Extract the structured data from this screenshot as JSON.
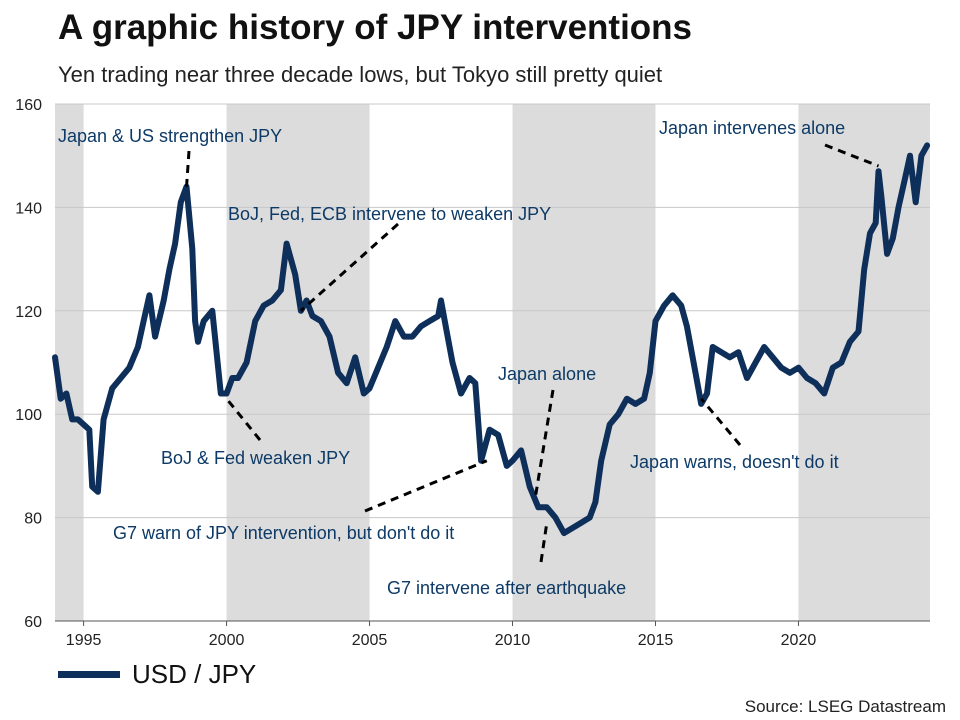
{
  "header": {
    "title": "A graphic history of JPY interventions",
    "subtitle": "Yen trading near three decade lows, but Tokyo still pretty quiet"
  },
  "legend": {
    "label": "USD / JPY"
  },
  "source": "Source: LSEG Datastream",
  "colors": {
    "line": "#0d2f5a",
    "band": "#dcdcdc",
    "annotation": "#0d3a66"
  },
  "chart_data": {
    "type": "line",
    "title": "A graphic history of JPY interventions",
    "subtitle": "Yen trading near three decade lows, but Tokyo still pretty quiet",
    "ylim": [
      60,
      160
    ],
    "xlim": [
      1994.0,
      2024.6
    ],
    "yticks": [
      60,
      80,
      100,
      120,
      140,
      160
    ],
    "xticks": [
      1995,
      2000,
      2005,
      2010,
      2015,
      2020
    ],
    "grid": true,
    "legend_position": "bottom-left",
    "shaded_periods": [
      [
        1994.0,
        1995.0
      ],
      [
        2000.0,
        2005.0
      ],
      [
        2010.0,
        2015.0
      ],
      [
        2020.0,
        2024.6
      ]
    ],
    "series": [
      {
        "name": "USD / JPY",
        "x": [
          1994.0,
          1994.2,
          1994.4,
          1994.6,
          1994.8,
          1995.0,
          1995.2,
          1995.3,
          1995.5,
          1995.7,
          1996.0,
          1996.3,
          1996.6,
          1996.9,
          1997.1,
          1997.3,
          1997.5,
          1997.8,
          1998.0,
          1998.2,
          1998.4,
          1998.6,
          1998.8,
          1998.9,
          1999.0,
          1999.2,
          1999.5,
          1999.8,
          2000.0,
          2000.2,
          2000.4,
          2000.7,
          2001.0,
          2001.3,
          2001.6,
          2001.9,
          2002.1,
          2002.4,
          2002.6,
          2002.8,
          2003.0,
          2003.3,
          2003.6,
          2003.9,
          2004.2,
          2004.5,
          2004.8,
          2005.0,
          2005.3,
          2005.6,
          2005.9,
          2006.2,
          2006.5,
          2006.8,
          2007.1,
          2007.4,
          2007.5,
          2007.7,
          2007.9,
          2008.2,
          2008.5,
          2008.7,
          2008.9,
          2009.2,
          2009.5,
          2009.8,
          2010.0,
          2010.3,
          2010.6,
          2010.9,
          2011.2,
          2011.5,
          2011.8,
          2012.1,
          2012.4,
          2012.7,
          2012.9,
          2013.1,
          2013.4,
          2013.7,
          2014.0,
          2014.3,
          2014.6,
          2014.8,
          2015.0,
          2015.3,
          2015.6,
          2015.9,
          2016.1,
          2016.4,
          2016.6,
          2016.8,
          2017.0,
          2017.3,
          2017.6,
          2017.9,
          2018.2,
          2018.5,
          2018.8,
          2019.1,
          2019.4,
          2019.7,
          2020.0,
          2020.3,
          2020.6,
          2020.9,
          2021.2,
          2021.5,
          2021.8,
          2022.1,
          2022.3,
          2022.5,
          2022.7,
          2022.8,
          2022.9,
          2023.1,
          2023.3,
          2023.5,
          2023.7,
          2023.9,
          2024.1,
          2024.3,
          2024.5
        ],
        "values": [
          111,
          103,
          104,
          99,
          99,
          98,
          97,
          86,
          85,
          99,
          105,
          107,
          109,
          113,
          118,
          123,
          115,
          122,
          128,
          133,
          141,
          144,
          132,
          118,
          114,
          118,
          120,
          104,
          104,
          107,
          107,
          110,
          118,
          121,
          122,
          124,
          133,
          127,
          120,
          122,
          119,
          118,
          115,
          108,
          106,
          111,
          104,
          105,
          109,
          113,
          118,
          115,
          115,
          117,
          118,
          119,
          122,
          116,
          110,
          104,
          107,
          106,
          91,
          97,
          96,
          90,
          91,
          93,
          86,
          82,
          82,
          80,
          77,
          78,
          79,
          80,
          83,
          91,
          98,
          100,
          103,
          102,
          103,
          108,
          118,
          121,
          123,
          121,
          117,
          108,
          102,
          104,
          113,
          112,
          111,
          112,
          107,
          110,
          113,
          111,
          109,
          108,
          109,
          107,
          106,
          104,
          109,
          110,
          114,
          116,
          128,
          135,
          137,
          147,
          142,
          131,
          134,
          140,
          145,
          150,
          141,
          150,
          152
        ]
      }
    ],
    "annotations": [
      {
        "text": "Japan & US strengthen JPY",
        "x": 1998.6,
        "y": 144
      },
      {
        "text": "BoJ, Fed, ECB intervene to weaken JPY",
        "x": 2002.6,
        "y": 120
      },
      {
        "text": "BoJ & Fed weaken JPY",
        "x": 2000.0,
        "y": 103
      },
      {
        "text": "Japan alone",
        "x": 2010.8,
        "y": 84
      },
      {
        "text": "G7 warn of JPY intervention, but don't do it",
        "x": 2009.1,
        "y": 91
      },
      {
        "text": "G7 intervene after earthquake",
        "x": 2011.2,
        "y": 79
      },
      {
        "text": "Japan warns, doesn't do it",
        "x": 2016.6,
        "y": 103
      },
      {
        "text": "Japan intervenes alone",
        "x": 2022.8,
        "y": 148
      }
    ]
  }
}
